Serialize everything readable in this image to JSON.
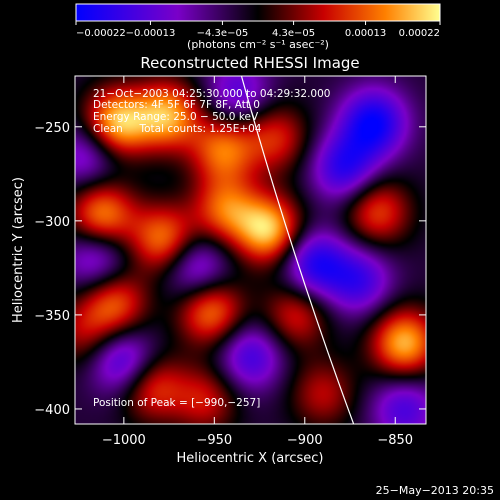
{
  "chart_data": {
    "type": "heatmap",
    "title": "Reconstructed RHESSI Image",
    "xlabel": "Heliocentric X (arcsec)",
    "ylabel": "Heliocentric Y (arcsec)",
    "xlim": [
      -1027,
      -833
    ],
    "ylim": [
      -408,
      -223
    ],
    "x_ticks": [
      -1000,
      -950,
      -900,
      -850
    ],
    "x_tick_labels": [
      "−1000",
      "−950",
      "−900",
      "−850"
    ],
    "y_ticks": [
      -250,
      -300,
      -350,
      -400
    ],
    "y_tick_labels": [
      "−250",
      "−300",
      "−350",
      "−400"
    ],
    "colorbar": {
      "min": -0.00022,
      "max": 0.00022,
      "ticks": [
        -0.00022,
        -0.00013,
        -4.3e-05,
        4.3e-05,
        0.00013,
        0.00022
      ],
      "tick_labels": [
        "−0.00022",
        "−0.00013",
        "−4.3e−05",
        "4.3e−05",
        "0.00013",
        "0.00022"
      ],
      "units": "(photons cm⁻² s⁻¹ asec⁻²)",
      "colors": [
        "#0000ff",
        "#7a00c8",
        "#000000",
        "#c80000",
        "#ff8000",
        "#ffff90"
      ]
    },
    "annotations": [
      "21−Oct−2003 04:25:30.000 to 04:29:32.000",
      "Detectors: 4F 5F 6F 7F 8F, Att 0",
      "Energy Range: 25.0 − 50.0 keV",
      "Clean     Total counts: 1.25E+04",
      "Position of Peak = [−990,−257]"
    ],
    "peak_position": [
      -990,
      -257
    ],
    "limb_curve": [
      [
        -935,
        -223
      ],
      [
        -873,
        -408
      ]
    ],
    "sources": [
      {
        "x": -1004,
        "y": -248,
        "v": 1.0
      },
      {
        "x": -976,
        "y": -244,
        "v": 0.9
      },
      {
        "x": -945,
        "y": -262,
        "v": 0.75
      },
      {
        "x": -916,
        "y": -256,
        "v": 0.55
      },
      {
        "x": -1012,
        "y": -297,
        "v": 0.85
      },
      {
        "x": -978,
        "y": -310,
        "v": 0.8
      },
      {
        "x": -920,
        "y": -305,
        "v": 1.0
      },
      {
        "x": -944,
        "y": -294,
        "v": 0.7
      },
      {
        "x": -860,
        "y": -295,
        "v": 0.65
      },
      {
        "x": -1005,
        "y": -344,
        "v": 0.7
      },
      {
        "x": -952,
        "y": -348,
        "v": 0.8
      },
      {
        "x": -905,
        "y": -350,
        "v": 0.55
      },
      {
        "x": -845,
        "y": -365,
        "v": 0.95
      },
      {
        "x": -985,
        "y": -388,
        "v": 0.65
      },
      {
        "x": -955,
        "y": -395,
        "v": 0.5
      },
      {
        "x": -890,
        "y": -392,
        "v": 0.45
      },
      {
        "x": -1022,
        "y": -360,
        "v": 0.4
      },
      {
        "x": -862,
        "y": -248,
        "v": -0.85
      },
      {
        "x": -878,
        "y": -272,
        "v": -0.7
      },
      {
        "x": -895,
        "y": -323,
        "v": -0.75
      },
      {
        "x": -960,
        "y": -325,
        "v": -0.6
      },
      {
        "x": -1020,
        "y": -265,
        "v": -0.5
      },
      {
        "x": -1000,
        "y": -375,
        "v": -0.7
      },
      {
        "x": -930,
        "y": -372,
        "v": -0.6
      },
      {
        "x": -870,
        "y": -332,
        "v": -0.6
      },
      {
        "x": -845,
        "y": -400,
        "v": -0.55
      },
      {
        "x": -937,
        "y": -232,
        "v": -0.5
      },
      {
        "x": -1015,
        "y": -320,
        "v": -0.55
      }
    ]
  },
  "footer": {
    "timestamp": "25−May−2013 20:35"
  }
}
